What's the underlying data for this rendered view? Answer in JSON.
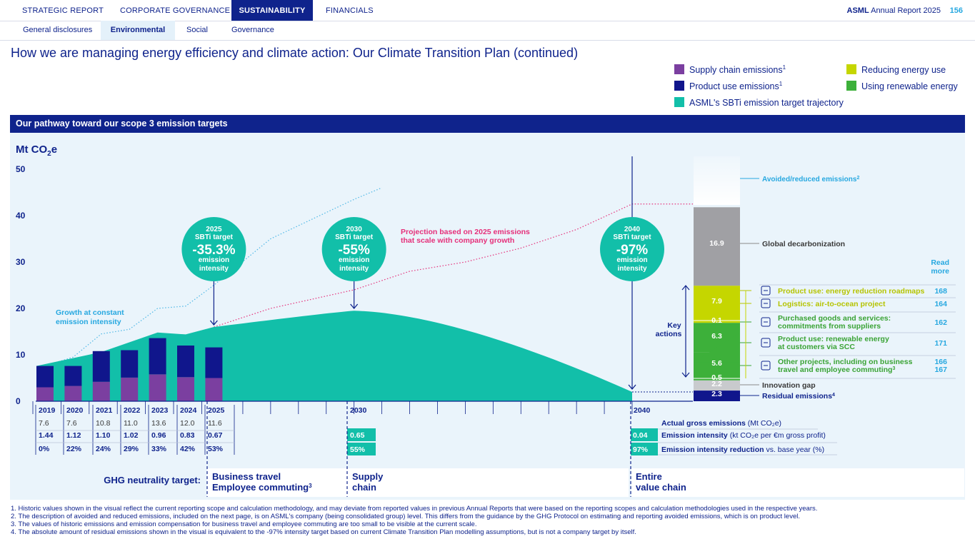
{
  "nav": {
    "tabs": [
      "STRATEGIC REPORT",
      "CORPORATE GOVERNANCE",
      "SUSTAINABILITY",
      "FINANCIALS"
    ],
    "active_tab": "SUSTAINABILITY",
    "brand": "ASML",
    "report": "Annual Report 2025",
    "page": "156"
  },
  "subnav": {
    "tabs": [
      "General disclosures",
      "Environmental",
      "Social",
      "Governance"
    ],
    "active_tab": "Environmental"
  },
  "page_title": "How we are managing energy efficiency and climate action: Our Climate Transition Plan (continued)",
  "legend": [
    {
      "label": "Supply chain emissions",
      "sup": "1",
      "color": "#7b3fa0"
    },
    {
      "label": "Product use emissions",
      "sup": "1",
      "color": "#10168c"
    },
    {
      "label": "ASML's SBTi emission target trajectory",
      "sup": "",
      "color": "#12bfa9"
    },
    {
      "label": "Reducing energy use",
      "sup": "",
      "color": "#c5d600"
    },
    {
      "label": "Using renewable energy",
      "sup": "",
      "color": "#3db03a"
    }
  ],
  "panel_title": "Our pathway toward our scope 3 emission targets",
  "chart_data": {
    "type": "bar",
    "ylabel": "Mt CO2e",
    "ylabel_main": "Mt CO",
    "ylabel_sub": "2",
    "ylabel_tail": "e",
    "yticks": [
      "50",
      "40",
      "30",
      "20",
      "10",
      "0"
    ],
    "ylim": [
      0,
      50
    ],
    "categories": [
      "2019",
      "2020",
      "2021",
      "2022",
      "2023",
      "2024",
      "2025"
    ],
    "series": [
      {
        "name": "Supply chain emissions",
        "values": [
          3.0,
          3.3,
          4.2,
          5.1,
          5.8,
          5.2,
          5.0
        ]
      },
      {
        "name": "Product use emissions",
        "values": [
          4.6,
          4.3,
          6.6,
          5.9,
          7.8,
          6.8,
          6.6
        ]
      }
    ],
    "actual_gross_emissions": [
      "7.6",
      "7.6",
      "10.8",
      "11.0",
      "13.6",
      "12.0",
      "11.6"
    ],
    "emission_intensity": [
      "1.44",
      "1.12",
      "1.10",
      "1.02",
      "0.96",
      "0.83",
      "0.67"
    ],
    "intensity_reduction": [
      "0%",
      "22%",
      "24%",
      "29%",
      "33%",
      "42%",
      "53%"
    ],
    "axis_years": [
      "2030",
      "2040"
    ],
    "target_2030": {
      "intensity": "0.65",
      "reduction": "55%"
    },
    "target_2040": {
      "intensity": "0.04",
      "reduction": "97%"
    },
    "trajectory": [
      [
        2019,
        7.6
      ],
      [
        2021,
        10.8
      ],
      [
        2025,
        16.0
      ],
      [
        2030,
        19.5
      ],
      [
        2035,
        12.5
      ],
      [
        2040,
        2.0
      ]
    ],
    "growth_line": [
      [
        2019,
        7.6
      ],
      [
        2020,
        9.5
      ],
      [
        2021,
        14.5
      ],
      [
        2022,
        15.5
      ],
      [
        2023,
        20.0
      ],
      [
        2024,
        20.5
      ],
      [
        2025,
        25.0
      ],
      [
        2027,
        35.0
      ],
      [
        2030,
        43.5
      ],
      [
        2031,
        46.0
      ]
    ],
    "projection_line": [
      [
        2025,
        16.0
      ],
      [
        2027,
        20.0
      ],
      [
        2030,
        24.0
      ],
      [
        2032,
        28.0
      ],
      [
        2034,
        30.0
      ],
      [
        2036,
        33.0
      ],
      [
        2038,
        37.0
      ],
      [
        2040,
        42.5
      ]
    ],
    "stack_2040": [
      {
        "label": "2.3",
        "value": 2.3,
        "color": "#10168c",
        "name": "Residual emissions"
      },
      {
        "label": "2.2",
        "value": 2.2,
        "color": "#c8cacd",
        "name": "Innovation gap"
      },
      {
        "label": "0.5",
        "value": 0.5,
        "color": "#3db03a"
      },
      {
        "label": "5.6",
        "value": 5.6,
        "color": "#3db03a"
      },
      {
        "label": "6.3",
        "value": 6.3,
        "color": "#3db03a"
      },
      {
        "label": "0.1",
        "value": 0.1,
        "color": "#c5d600"
      },
      {
        "label": "7.9",
        "value": 7.9,
        "color": "#c5d600"
      },
      {
        "label": "16.9",
        "value": 16.9,
        "color": "#a0a0a4",
        "name": "Global decarbonization"
      }
    ]
  },
  "targets": [
    {
      "year": "2025",
      "label": "SBTi target",
      "value": "-35.3%",
      "sub1": "emission",
      "sub2": "intensity"
    },
    {
      "year": "2030",
      "label": "SBTi target",
      "value": "-55%",
      "sub1": "emission",
      "sub2": "intensity"
    },
    {
      "year": "2040",
      "label": "SBTi target",
      "value": "-97%",
      "sub1": "emission",
      "sub2": "intensity"
    }
  ],
  "annotations": {
    "growth": [
      "Growth at constant",
      "emission intensity"
    ],
    "projection": [
      "Projection based on 2025 emissions",
      "that scale with company growth"
    ],
    "key_actions": [
      "Key",
      "actions"
    ],
    "avoided": "Avoided/reduced emissions",
    "avoided_sup": "2",
    "global": "Global decarbonization",
    "innovation": "Innovation gap",
    "residual": "Residual emissions",
    "residual_sup": "4",
    "read_more": [
      "Read",
      "more"
    ]
  },
  "row_labels": [
    {
      "bold": "Actual gross emissions",
      "rest": " (Mt CO₂e)"
    },
    {
      "bold": "Emission intensity",
      "rest": " (kt CO₂e per €m gross profit)"
    },
    {
      "bold": "Emission intensity reduction",
      "rest": " vs. base year (%)"
    }
  ],
  "actions": [
    {
      "text": [
        "Product use: energy reduction roadmaps"
      ],
      "pages": [
        "168"
      ],
      "color": "#b5c400",
      "icon": "chip-icon"
    },
    {
      "text": [
        "Logistics: air-to-ocean project"
      ],
      "pages": [
        "164"
      ],
      "color": "#b5c400",
      "icon": "ship-icon"
    },
    {
      "text": [
        "Purchased goods and services:",
        "commitments from suppliers"
      ],
      "pages": [
        "162"
      ],
      "color": "#3aa335",
      "icon": "box-icon"
    },
    {
      "text": [
        "Product use: renewable energy",
        "at customers via SCC"
      ],
      "pages": [
        "171"
      ],
      "color": "#3aa335",
      "icon": "chip-icon"
    },
    {
      "text": [
        "Other projects, including on business",
        "travel and employee commuting"
      ],
      "sup": "3",
      "pages": [
        "166",
        "167"
      ],
      "color": "#3aa335",
      "icon": "plane-bus-icon"
    }
  ],
  "ghg": {
    "label": "GHG neutrality target:",
    "items": [
      {
        "lines": [
          "Business travel",
          "Employee commuting"
        ],
        "sup": "3"
      },
      {
        "lines": [
          "Supply",
          "chain"
        ]
      },
      {
        "lines": [
          "Entire",
          "value chain"
        ]
      }
    ]
  },
  "footnotes": [
    "1. Historic values shown in the visual reflect the current reporting scope and calculation methodology, and may deviate from reported values in previous Annual Reports that were based on the reporting scopes and calculation methodologies used in the respective years.",
    "2. The description of avoided and reduced emissions, included on the next page, is on ASML's company (being consolidated group) level. This differs from the guidance by the GHG Protocol on estimating and reporting avoided emissions, which is on product level.",
    "3. The values of historic emissions and emission compensation for business travel and employee commuting are too small to be visible at the current scale.",
    "4. The absolute amount of residual emissions shown in the visual is equivalent to the -97% intensity target based on current Climate Transition Plan modelling assumptions, but is not a company target by itself."
  ]
}
